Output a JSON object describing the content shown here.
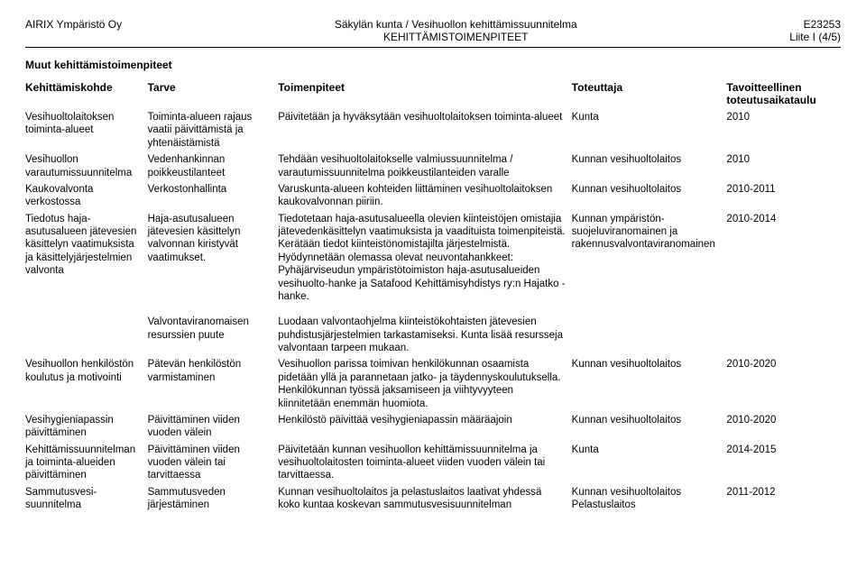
{
  "header": {
    "left": "AIRIX Ympäristö Oy",
    "centerLine1": "Säkylän kunta / Vesihuollon kehittämissuunnitelma",
    "centerLine2": "KEHITTÄMISTOIMENPITEET",
    "rightLine1": "E23253",
    "rightLine2": "Liite I (4/5)"
  },
  "sectionTitle": "Muut kehittämistoimenpiteet",
  "columns": {
    "c0": "Kehittämiskohde",
    "c1": "Tarve",
    "c2": "Toimenpiteet",
    "c3": "Toteuttaja",
    "c4": "Tavoitteellinen toteutusai­kataulu"
  },
  "rows": [
    {
      "kohde": "Vesihuoltolaitoksen toiminta-alueet",
      "tarve": "Toiminta-alueen rajaus vaatii päivittämistä ja yhtenäistämistä",
      "toimen": "Päivitetään ja hyväksytään vesihuoltolaitoksen toiminta-alueet",
      "toteut": "Kunta",
      "tavoite": "2010"
    },
    {
      "kohde": "Vesihuollon varautumissuunnitelma",
      "tarve": "Vedenhankinnan poikkeustilanteet",
      "toimen": "Tehdään vesihuoltolaitokselle valmiussuunnitelma / varautumissuunnitelma poikkeustilanteiden varalle",
      "toteut": "Kunnan vesihuoltolaitos",
      "tavoite": "2010"
    },
    {
      "kohde": "Kaukovalvonta verkostossa",
      "tarve": "Verkostonhallinta",
      "toimen": "Varuskunta-alueen kohteiden liittäminen vesihuoltolaitoksen kaukovalvonnan piiriin.",
      "toteut": "Kunnan vesihuoltolaitos",
      "tavoite": "2010-2011"
    },
    {
      "kohde": "Tiedotus haja-asutusalueen jätevesien käsittelyn vaatimuksista ja käsittelyjärjestelmien valvonta",
      "tarve": "Haja-asutusalueen jätevesien käsittelyn valvonnan kiristyvät vaatimukset.",
      "toimen": "Tiedotetaan haja-asutusalueella olevien kiinteistöjen omistajia jätevedenkäsittelyn vaatimuksista ja vaadituista toimenpiteistä. Kerätään tiedot kiinteistönomistajilta järjestelmistä. Hyödynnetään olemassa olevat neuvontahankkeet: Pyhäjärviseudun ympäristötoimiston haja-asutusalueiden vesihuolto-hanke ja Satafood Kehittämisyhdistys ry:n Hajatko -hanke.",
      "toteut": "Kunnan ympäristön­suojeluviranomainen ja rakennusvalvontaviranomainen",
      "tavoite": "2010-2014"
    },
    {
      "kohde": "",
      "tarve": "Valvontaviranomaisen resurssien puute",
      "toimen": "Luodaan valvontaohjelma kiinteistökohtaisten jätevesien puhdistusjärjestelmien tarkastamiseksi. Kunta lisää resursseja valvontaan tarpeen mukaan.",
      "toteut": "",
      "tavoite": ""
    },
    {
      "kohde": "Vesihuollon henkilöstön koulutus ja motivointi",
      "tarve": "Pätevän henkilöstön varmistaminen",
      "toimen": "Vesihuollon parissa toimivan henkilökunnan osaamista pidetään yllä ja parannetaan jatko- ja täydennyskoulutuksella. Henkilökunnan työssä jaksamiseen ja viihtyvyyteen kiinnitetään enemmän huomiota.",
      "toteut": "Kunnan vesihuoltolaitos",
      "tavoite": "2010-2020"
    },
    {
      "kohde": "Vesihygieniapassin päivittäminen",
      "tarve": "Päivittäminen viiden vuoden välein",
      "toimen": "Henkilöstö päivittää vesihygieniapassin määräajoin",
      "toteut": "Kunnan vesihuoltolaitos",
      "tavoite": "2010-2020"
    },
    {
      "kohde": "Kehittämissuunnitelman ja toiminta-alueiden päivittäminen",
      "tarve": "Päivittäminen viiden vuoden välein tai tarvittaessa",
      "toimen": "Päivitetään kunnan vesihuollon kehittämissuunnitelma ja vesihuoltolaitosten toiminta-alueet viiden vuoden välein tai tarvittaessa.",
      "toteut": "Kunta",
      "tavoite": "2014-2015"
    },
    {
      "kohde": "Sammutusvesi­suunnitelma",
      "tarve": "Sammutusveden järjestäminen",
      "toimen": "Kunnan vesihuoltolaitos ja pelastuslaitos laativat yhdessä koko kuntaa koskevan sammutusvesisuunnitelman",
      "toteut": "Kunnan vesihuoltolaitos Pelastuslaitos",
      "tavoite": "2011-2012"
    }
  ]
}
